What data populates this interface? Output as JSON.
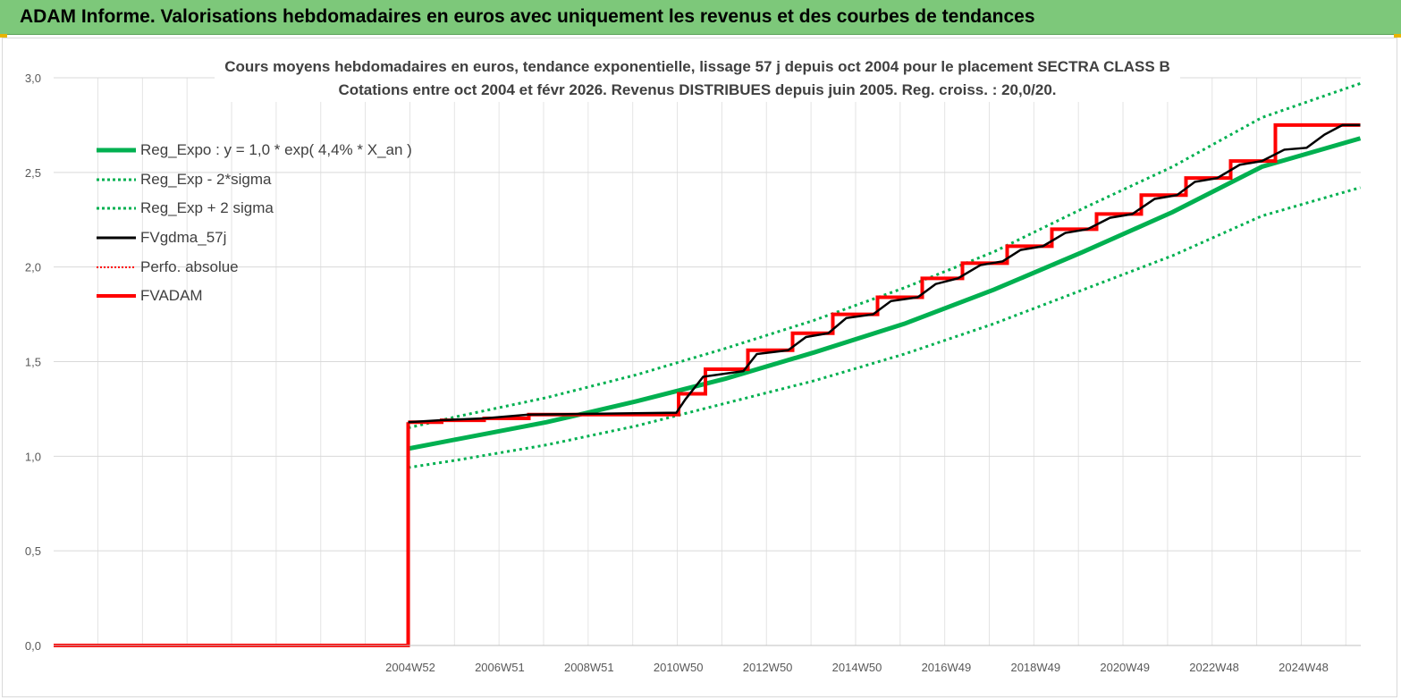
{
  "header": {
    "title": "ADAM Informe. Valorisations hebdomadaires en euros avec uniquement les revenus et des courbes de tendances"
  },
  "chart_data": {
    "type": "line",
    "title_line1": "Cours moyens hebdomadaires en euros, tendance exponentielle, lissage 57 j depuis oct 2004 pour le placement SECTRA CLASS B",
    "title_line2": "Cotations entre oct 2004 et févr 2026. Revenus DISTRIBUES depuis juin 2005. Reg. croiss. : 20,0/20.",
    "ylim": [
      0,
      3
    ],
    "yticks": [
      "0,0",
      "0,5",
      "1,0",
      "1,5",
      "2,0",
      "2,5",
      "3,0"
    ],
    "xticks": [
      "2004W52",
      "2006W51",
      "2008W51",
      "2010W50",
      "2012W50",
      "2014W50",
      "2016W49",
      "2018W49",
      "2020W49",
      "2022W48",
      "2024W48"
    ],
    "grid": true,
    "legend_position": "top-left",
    "colors": {
      "reg_expo": "#00b050",
      "reg_band": "#00b050",
      "smoothed": "#000000",
      "perfo": "#ff0000",
      "fvadam": "#ff0000"
    },
    "series": [
      {
        "name": "Reg_Expo : y = 1,0 * exp( 4,4% *  X_an )",
        "style": "solid-thick",
        "x": [
          2004.9,
          2006,
          2008,
          2010,
          2012,
          2014,
          2016,
          2018,
          2020,
          2022,
          2024,
          2026.2
        ],
        "y": [
          1.04,
          1.09,
          1.18,
          1.29,
          1.41,
          1.55,
          1.7,
          1.88,
          2.08,
          2.29,
          2.53,
          2.68
        ]
      },
      {
        "name": "Reg_Exp - 2*sigma",
        "style": "dotted",
        "x": [
          2004.9,
          2006,
          2008,
          2010,
          2012,
          2014,
          2016,
          2018,
          2020,
          2022,
          2024,
          2026.2
        ],
        "y": [
          0.94,
          0.98,
          1.06,
          1.16,
          1.28,
          1.4,
          1.54,
          1.7,
          1.88,
          2.06,
          2.27,
          2.42
        ]
      },
      {
        "name": "Reg_Exp + 2 sigma",
        "style": "dotted",
        "x": [
          2004.9,
          2006,
          2008,
          2010,
          2012,
          2014,
          2016,
          2018,
          2020,
          2022,
          2024,
          2026.2
        ],
        "y": [
          1.15,
          1.21,
          1.31,
          1.43,
          1.57,
          1.72,
          1.89,
          2.08,
          2.31,
          2.53,
          2.79,
          2.97
        ]
      },
      {
        "name": "FVgdma_57j",
        "style": "solid",
        "x": [
          2004.9,
          2005.6,
          2006.6,
          2007.6,
          2010.9,
          2011.1,
          2011.5,
          2012.4,
          2012.7,
          2013.4,
          2013.8,
          2014.3,
          2014.7,
          2015.3,
          2015.7,
          2016.3,
          2016.7,
          2017.2,
          2017.7,
          2018.2,
          2018.6,
          2019.1,
          2019.6,
          2020.1,
          2020.6,
          2021.1,
          2021.6,
          2022.1,
          2022.5,
          2023.0,
          2023.5,
          2024.0,
          2024.5,
          2025.0,
          2025.4,
          2025.8,
          2026.2
        ],
        "y": [
          1.18,
          1.19,
          1.2,
          1.22,
          1.23,
          1.3,
          1.42,
          1.45,
          1.54,
          1.56,
          1.63,
          1.65,
          1.73,
          1.75,
          1.82,
          1.84,
          1.91,
          1.94,
          2.01,
          2.03,
          2.09,
          2.11,
          2.18,
          2.2,
          2.26,
          2.28,
          2.36,
          2.38,
          2.45,
          2.47,
          2.54,
          2.56,
          2.62,
          2.63,
          2.7,
          2.75,
          2.75
        ]
      },
      {
        "name": "Perfo. absolue",
        "style": "dotted-red",
        "x": [],
        "y": []
      },
      {
        "name": "FVADAM",
        "style": "step-thick",
        "x": [
          2004.9,
          2005.65,
          2006.6,
          2007.6,
          2010.95,
          2011.55,
          2012.5,
          2013.5,
          2014.4,
          2015.4,
          2016.4,
          2017.3,
          2018.3,
          2019.3,
          2020.3,
          2021.3,
          2022.3,
          2023.3,
          2024.3,
          2025.3,
          2026.2
        ],
        "y": [
          1.18,
          1.19,
          1.2,
          1.22,
          1.33,
          1.46,
          1.56,
          1.65,
          1.75,
          1.84,
          1.94,
          2.02,
          2.11,
          2.2,
          2.28,
          2.38,
          2.47,
          2.56,
          2.75,
          2.75,
          2.75
        ]
      }
    ]
  }
}
